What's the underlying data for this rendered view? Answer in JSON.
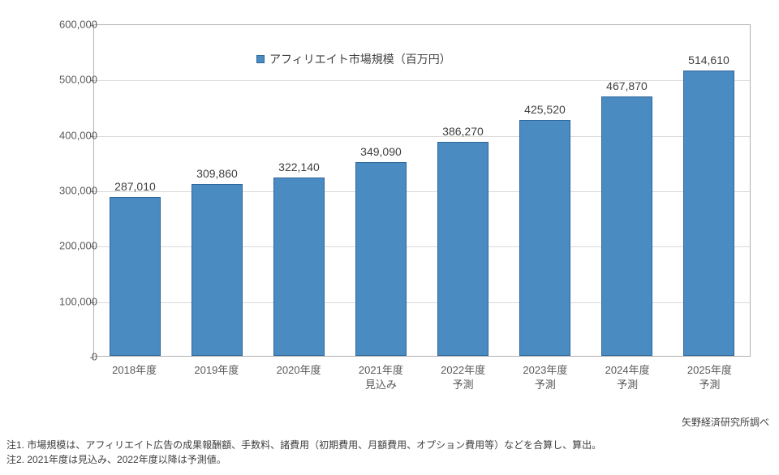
{
  "chart": {
    "type": "bar",
    "legend": {
      "label": "アフィリエイト市場規模（百万円）",
      "swatch_color": "#4a8bc2",
      "position": "top-left-inside"
    },
    "categories": [
      "2018年度",
      "2019年度",
      "2020年度",
      "2021年度\n見込み",
      "2022年度\n予測",
      "2023年度\n予測",
      "2024年度\n予測",
      "2025年度\n予測"
    ],
    "values": [
      287010,
      309860,
      322140,
      349090,
      386270,
      425520,
      467870,
      514610
    ],
    "value_labels": [
      "287,010",
      "309,860",
      "322,140",
      "349,090",
      "386,270",
      "425,520",
      "467,870",
      "514,610"
    ],
    "bar_fill": "#4a8bc2",
    "bar_border": "#2e6699",
    "bar_width_ratio": 0.62,
    "y_axis": {
      "min": 0,
      "max": 600000,
      "tick_step": 100000,
      "tick_labels": [
        "0",
        "100,000",
        "200,000",
        "300,000",
        "400,000",
        "500,000",
        "600,000"
      ],
      "grid_color": "#d9d9d9",
      "label_color": "#595959",
      "label_fontsize": 13
    },
    "x_axis": {
      "label_color": "#595959",
      "label_fontsize": 13
    },
    "value_label_style": {
      "fontsize": 14,
      "color": "#404040"
    },
    "background_color": "#ffffff",
    "plot_border_color": "#b0b0b0"
  },
  "source": "矢野経済研究所調べ",
  "notes": [
    "注1.  市場規模は、アフィリエイト広告の成果報酬額、手数料、諸費用（初期費用、月額費用、オプション費用等）などを合算し、算出。",
    "注2.  2021年度は見込み、2022年度以降は予測値。"
  ]
}
